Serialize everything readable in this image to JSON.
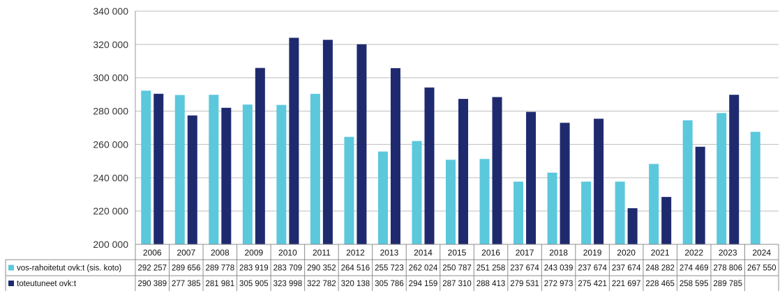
{
  "chart_data": {
    "type": "bar",
    "title": "",
    "xlabel": "",
    "ylabel": "",
    "ylim": [
      200000,
      340000
    ],
    "yticks": [
      "200 000",
      "220 000",
      "240 000",
      "260 000",
      "280 000",
      "300 000",
      "320 000",
      "340 000"
    ],
    "ytick_values": [
      200000,
      220000,
      240000,
      260000,
      280000,
      300000,
      320000,
      340000
    ],
    "grid": true,
    "legend_position": "bottom data table",
    "categories": [
      "2006",
      "2007",
      "2008",
      "2009",
      "2010",
      "2011",
      "2012",
      "2013",
      "2014",
      "2015",
      "2016",
      "2017",
      "2018",
      "2019",
      "2020",
      "2021",
      "2022",
      "2023",
      "2024"
    ],
    "series": [
      {
        "name": "vos-rahoitetut ovk:t (sis. koto)",
        "color": "#5bc8dc",
        "values": [
          292257,
          289656,
          289778,
          283919,
          283709,
          290352,
          264516,
          255723,
          262024,
          250787,
          251258,
          237674,
          243039,
          237674,
          237674,
          248282,
          274469,
          278806,
          267550
        ],
        "labels": [
          "292 257",
          "289 656",
          "289 778",
          "283 919",
          "283 709",
          "290 352",
          "264 516",
          "255 723",
          "262 024",
          "250 787",
          "251 258",
          "237 674",
          "243 039",
          "237 674",
          "237 674",
          "248 282",
          "274 469",
          "278 806",
          "267 550"
        ]
      },
      {
        "name": "toteutuneet ovk:t",
        "color": "#1f2a6e",
        "values": [
          290389,
          277385,
          281981,
          305905,
          323998,
          322782,
          320138,
          305786,
          294159,
          287310,
          288413,
          279531,
          272973,
          275421,
          221697,
          228465,
          258595,
          289785,
          null
        ],
        "labels": [
          "290 389",
          "277 385",
          "281 981",
          "305 905",
          "323 998",
          "322 782",
          "320 138",
          "305 786",
          "294 159",
          "287 310",
          "288 413",
          "279 531",
          "272 973",
          "275 421",
          "221 697",
          "228 465",
          "258 595",
          "289 785",
          ""
        ]
      }
    ]
  }
}
